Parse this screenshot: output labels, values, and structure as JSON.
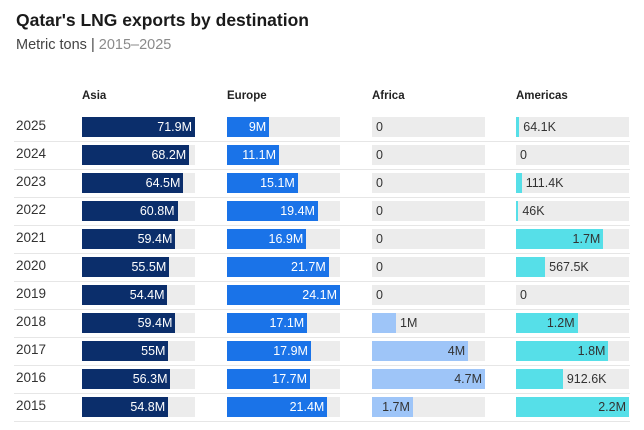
{
  "title": "Qatar's LNG exports by destination",
  "subtitle": {
    "unit": "Metric tons",
    "separator": " | ",
    "range": "2015–2025"
  },
  "chart_data": {
    "type": "bar",
    "title": "Qatar's LNG exports by destination",
    "subtitle": "Metric tons | 2015–2025",
    "categories": [
      "2025",
      "2024",
      "2023",
      "2022",
      "2021",
      "2020",
      "2019",
      "2018",
      "2017",
      "2016",
      "2015"
    ],
    "series": [
      {
        "name": "Asia",
        "color": "#0b2e6b",
        "text_color": "#ffffff",
        "values": [
          71.9,
          68.2,
          64.5,
          60.8,
          59.4,
          55.5,
          54.4,
          59.4,
          55,
          56.3,
          54.8
        ],
        "labels": [
          "71.9M",
          "68.2M",
          "64.5M",
          "60.8M",
          "59.4M",
          "55.5M",
          "54.4M",
          "59.4M",
          "55M",
          "56.3M",
          "54.8M"
        ]
      },
      {
        "name": "Europe",
        "color": "#1a73e8",
        "text_color": "#ffffff",
        "values": [
          9,
          11.1,
          15.1,
          19.4,
          16.9,
          21.7,
          24.1,
          17.1,
          17.9,
          17.7,
          21.4
        ],
        "labels": [
          "9M",
          "11.1M",
          "15.1M",
          "19.4M",
          "16.9M",
          "21.7M",
          "24.1M",
          "17.1M",
          "17.9M",
          "17.7M",
          "21.4M"
        ]
      },
      {
        "name": "Africa",
        "color": "#9ec5f8",
        "text_color": "#333333",
        "values": [
          0,
          0,
          0,
          0,
          0,
          0,
          0,
          1,
          4,
          4.7,
          1.7
        ],
        "labels": [
          "0",
          "0",
          "0",
          "0",
          "0",
          "0",
          "0",
          "1M",
          "4M",
          "4.7M",
          "1.7M"
        ]
      },
      {
        "name": "Americas",
        "color": "#56dfe8",
        "text_color": "#333333",
        "values": [
          0.0641,
          0,
          0.1114,
          0.046,
          1.7,
          0.5675,
          0,
          1.2,
          1.8,
          0.9126,
          2.2
        ],
        "labels": [
          "64.1K",
          "0",
          "111.4K",
          "46K",
          "1.7M",
          "567.5K",
          "0",
          "1.2M",
          "1.8M",
          "912.6K",
          "2.2M"
        ]
      }
    ],
    "unit": "Million metric tons",
    "scale": "each column scaled to its own maximum"
  }
}
